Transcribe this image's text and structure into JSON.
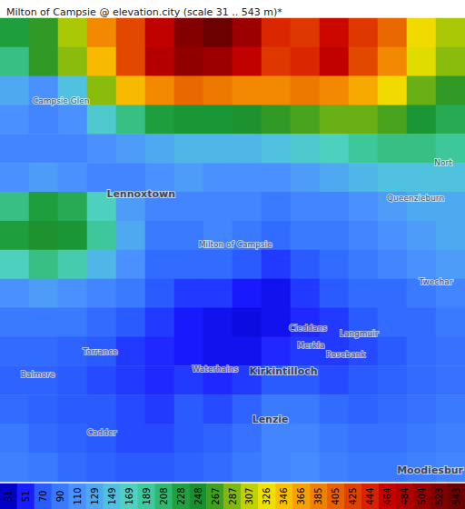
{
  "chart_data": {
    "type": "heatmap",
    "title": "Milton of Campsie @ elevation.city (scale 31 .. 543 m)*",
    "tick_labels": false,
    "cells": [
      [
        230,
        260,
        300,
        380,
        420,
        470,
        520,
        540,
        500,
        440,
        430,
        460,
        430,
        400,
        330,
        300
      ],
      [
        200,
        260,
        290,
        350,
        420,
        480,
        510,
        500,
        470,
        430,
        440,
        470,
        420,
        380,
        320,
        290
      ],
      [
        130,
        110,
        150,
        290,
        350,
        380,
        400,
        390,
        380,
        380,
        390,
        380,
        360,
        330,
        280,
        260
      ],
      [
        110,
        100,
        110,
        160,
        200,
        230,
        240,
        240,
        250,
        260,
        270,
        280,
        280,
        270,
        240,
        220
      ],
      [
        100,
        100,
        100,
        110,
        120,
        130,
        140,
        140,
        140,
        150,
        160,
        170,
        190,
        200,
        200,
        190
      ],
      [
        110,
        120,
        110,
        100,
        100,
        110,
        120,
        110,
        110,
        110,
        120,
        130,
        140,
        150,
        150,
        150
      ],
      [
        200,
        230,
        220,
        170,
        120,
        100,
        100,
        100,
        100,
        90,
        100,
        100,
        110,
        120,
        130,
        130
      ],
      [
        230,
        250,
        240,
        190,
        130,
        90,
        90,
        100,
        90,
        80,
        90,
        90,
        100,
        110,
        120,
        130
      ],
      [
        170,
        200,
        180,
        140,
        110,
        80,
        80,
        80,
        70,
        60,
        70,
        80,
        90,
        100,
        110,
        120
      ],
      [
        110,
        120,
        110,
        100,
        90,
        70,
        60,
        60,
        50,
        45,
        60,
        70,
        80,
        80,
        90,
        100
      ],
      [
        90,
        90,
        90,
        80,
        70,
        60,
        50,
        45,
        40,
        45,
        55,
        60,
        70,
        80,
        80,
        90
      ],
      [
        80,
        80,
        75,
        70,
        60,
        55,
        50,
        45,
        45,
        55,
        60,
        60,
        65,
        70,
        80,
        85
      ],
      [
        75,
        75,
        70,
        65,
        60,
        55,
        60,
        55,
        60,
        70,
        70,
        65,
        70,
        75,
        80,
        85
      ],
      [
        80,
        75,
        70,
        70,
        65,
        60,
        70,
        65,
        75,
        90,
        90,
        80,
        75,
        80,
        85,
        90
      ],
      [
        90,
        80,
        75,
        70,
        65,
        65,
        70,
        75,
        85,
        100,
        100,
        90,
        85,
        85,
        90,
        95
      ],
      [
        95,
        90,
        80,
        75,
        70,
        70,
        75,
        80,
        90,
        100,
        105,
        95,
        90,
        90,
        95,
        100
      ]
    ],
    "color_scale": {
      "values": [
        31,
        51,
        70,
        90,
        110,
        129,
        149,
        169,
        189,
        208,
        228,
        248,
        267,
        287,
        307,
        326,
        346,
        366,
        385,
        405,
        425,
        444,
        464,
        484,
        504,
        523,
        543
      ],
      "colors": [
        "#0000c8",
        "#1a1aff",
        "#2a5cff",
        "#3a7aff",
        "#4a90ff",
        "#4fa8f0",
        "#50c0e0",
        "#4fd0c0",
        "#40c8a0",
        "#30b870",
        "#20a040",
        "#189030",
        "#40a020",
        "#80b810",
        "#c0d000",
        "#f0e000",
        "#f8c000",
        "#f8a000",
        "#f08000",
        "#e86000",
        "#e04000",
        "#d82000",
        "#c80000",
        "#b00000",
        "#980000",
        "#800000",
        "#6a0000"
      ]
    },
    "xlim": [
      0,
      16
    ],
    "ylim": [
      0,
      16
    ],
    "places": [
      {
        "name": "Campsie Glen",
        "x": 2.1,
        "y": 2.85,
        "major": false
      },
      {
        "name": "Lennoxtown",
        "x": 4.85,
        "y": 6.06,
        "major": true
      },
      {
        "name": "Milton of Campsie",
        "x": 8.1,
        "y": 7.8,
        "major": false
      },
      {
        "name": "Queenzieburn",
        "x": 14.3,
        "y": 6.2,
        "major": false
      },
      {
        "name": "Nort",
        "x": 15.25,
        "y": 5.0,
        "major": false
      },
      {
        "name": "Twechar",
        "x": 15.0,
        "y": 9.1,
        "major": false
      },
      {
        "name": "Cleddans",
        "x": 10.6,
        "y": 10.7,
        "major": false
      },
      {
        "name": "Langmuir",
        "x": 12.35,
        "y": 10.9,
        "major": false
      },
      {
        "name": "Merkla",
        "x": 10.7,
        "y": 11.3,
        "major": false
      },
      {
        "name": "Rosebank",
        "x": 11.9,
        "y": 11.6,
        "major": false
      },
      {
        "name": "Torrance",
        "x": 3.45,
        "y": 11.5,
        "major": false
      },
      {
        "name": "Balmore",
        "x": 1.3,
        "y": 12.3,
        "major": false
      },
      {
        "name": "Waterhains",
        "x": 7.4,
        "y": 12.1,
        "major": false
      },
      {
        "name": "Kirkintilloch",
        "x": 9.75,
        "y": 12.2,
        "major": true
      },
      {
        "name": "Lenzie",
        "x": 9.3,
        "y": 13.85,
        "major": true
      },
      {
        "name": "Cadder",
        "x": 3.5,
        "y": 14.3,
        "major": false
      },
      {
        "name": "Moodiesbur",
        "x": 14.8,
        "y": 15.6,
        "major": true
      }
    ]
  }
}
